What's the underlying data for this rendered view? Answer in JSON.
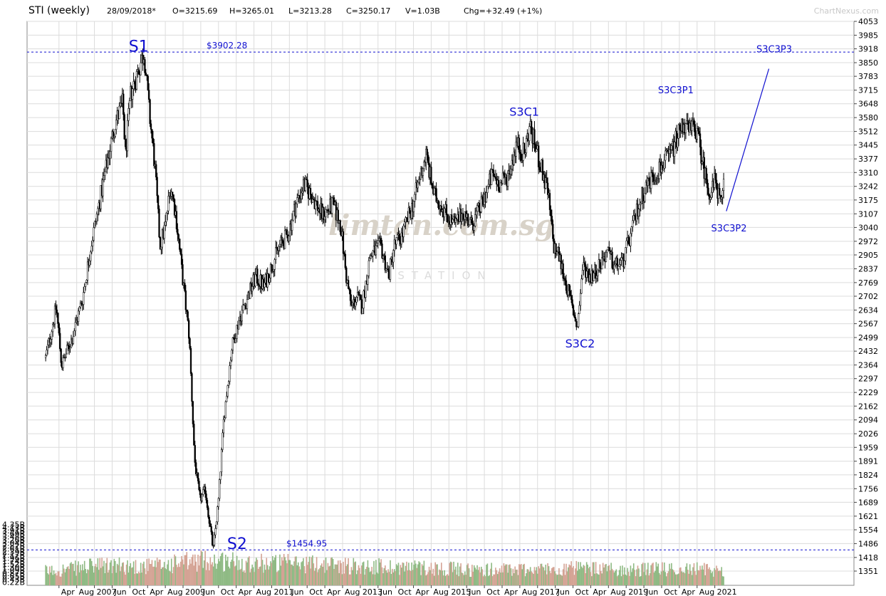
{
  "header": {
    "title": "STI (weekly)",
    "date": "28/09/2018*",
    "open": "O=3215.69",
    "high": "H=3265.01",
    "low": "L=3213.28",
    "close": "C=3250.17",
    "volume": "V=1.03B",
    "change": "Chg=+32.49 (+1%)",
    "brand": "ChartNexus.com"
  },
  "watermark": {
    "text": "limtan.com.sg",
    "sub": "STATION"
  },
  "colors": {
    "price": "#000000",
    "volume_up": "#8fba84",
    "volume_down": "#d4a394",
    "annotation": "#1010d0",
    "grid": "#dcdcdc"
  },
  "chart_data": {
    "type": "candlestick",
    "symbol": "STI",
    "interval": "weekly",
    "price_axis": {
      "ticks": [
        "4053",
        "3985",
        "3918",
        "3850",
        "3783",
        "3715",
        "3648",
        "3580",
        "3512",
        "3445",
        "3377",
        "3310",
        "3242",
        "3175",
        "3107",
        "3040",
        "2972",
        "2905",
        "2837",
        "2769",
        "2702",
        "2634",
        "2567",
        "2499",
        "2432",
        "2364",
        "2297",
        "2229",
        "2162",
        "2094",
        "2026",
        "1959",
        "1891",
        "1824",
        "1756",
        "1689",
        "1621",
        "1554",
        "1486",
        "1418",
        "1351"
      ],
      "range": [
        1320,
        4053
      ]
    },
    "volume_axis": {
      "ticks": [
        "4.35B",
        "4.13B",
        "3.91B",
        "3.69B",
        "3.48B",
        "3.26B",
        "3.04B",
        "2.82B",
        "2.61B",
        "2.39B",
        "2.17B",
        "1.96B",
        "1.74B",
        "1.52B",
        "1.30B",
        "1.09B",
        "0.87B",
        "0.65B",
        "0.43B",
        "0.22B"
      ]
    },
    "time_axis": {
      "labels": [
        "Apr",
        "Aug",
        "2007",
        "Jun",
        "Oct",
        "Apr",
        "Aug",
        "2009",
        "Jun",
        "Oct",
        "Apr",
        "Aug",
        "2011",
        "Jun",
        "Oct",
        "Apr",
        "Aug",
        "2013",
        "Jun",
        "Oct",
        "Apr",
        "Aug",
        "2015",
        "Jun",
        "Oct",
        "Apr",
        "Aug",
        "2017",
        "Jun",
        "Oct",
        "Apr",
        "Aug",
        "2019",
        "Jun",
        "Oct",
        "Apr",
        "Aug",
        "2021"
      ]
    },
    "horizontal_lines": [
      {
        "value": 3902.28,
        "label": "$3902.28"
      },
      {
        "value": 1454.95,
        "label": "$1454.95"
      }
    ],
    "price_path": [
      [
        2006.0,
        2400
      ],
      [
        2006.2,
        2650
      ],
      [
        2006.3,
        2360
      ],
      [
        2006.5,
        2500
      ],
      [
        2006.7,
        2700
      ],
      [
        2006.85,
        2950
      ],
      [
        2007.0,
        3150
      ],
      [
        2007.15,
        3350
      ],
      [
        2007.3,
        3550
      ],
      [
        2007.45,
        3650
      ],
      [
        2007.5,
        3400
      ],
      [
        2007.6,
        3700
      ],
      [
        2007.8,
        3860
      ],
      [
        2007.85,
        3902
      ],
      [
        2007.95,
        3600
      ],
      [
        2008.05,
        3350
      ],
      [
        2008.15,
        2950
      ],
      [
        2008.25,
        3050
      ],
      [
        2008.35,
        3250
      ],
      [
        2008.45,
        3100
      ],
      [
        2008.55,
        2850
      ],
      [
        2008.7,
        2500
      ],
      [
        2008.8,
        1900
      ],
      [
        2008.9,
        1700
      ],
      [
        2009.0,
        1750
      ],
      [
        2009.15,
        1455
      ],
      [
        2009.25,
        1700
      ],
      [
        2009.35,
        2100
      ],
      [
        2009.5,
        2450
      ],
      [
        2009.65,
        2600
      ],
      [
        2009.8,
        2700
      ],
      [
        2009.95,
        2800
      ],
      [
        2010.1,
        2750
      ],
      [
        2010.25,
        2850
      ],
      [
        2010.4,
        2950
      ],
      [
        2010.55,
        3000
      ],
      [
        2010.7,
        3150
      ],
      [
        2010.85,
        3250
      ],
      [
        2011.0,
        3200
      ],
      [
        2011.2,
        3100
      ],
      [
        2011.4,
        3150
      ],
      [
        2011.55,
        3050
      ],
      [
        2011.65,
        2800
      ],
      [
        2011.75,
        2650
      ],
      [
        2011.85,
        2700
      ],
      [
        2011.95,
        2650
      ],
      [
        2012.1,
        2900
      ],
      [
        2012.3,
        2950
      ],
      [
        2012.45,
        2800
      ],
      [
        2012.55,
        2950
      ],
      [
        2012.7,
        3000
      ],
      [
        2012.9,
        3150
      ],
      [
        2013.05,
        3300
      ],
      [
        2013.15,
        3400
      ],
      [
        2013.3,
        3200
      ],
      [
        2013.45,
        3150
      ],
      [
        2013.55,
        3100
      ],
      [
        2013.7,
        3050
      ],
      [
        2013.85,
        3120
      ],
      [
        2014.0,
        3050
      ],
      [
        2014.2,
        3150
      ],
      [
        2014.4,
        3300
      ],
      [
        2014.55,
        3250
      ],
      [
        2014.7,
        3300
      ],
      [
        2014.85,
        3450
      ],
      [
        2015.0,
        3400
      ],
      [
        2015.1,
        3540
      ],
      [
        2015.25,
        3400
      ],
      [
        2015.35,
        3300
      ],
      [
        2015.45,
        3200
      ],
      [
        2015.55,
        2950
      ],
      [
        2015.65,
        2900
      ],
      [
        2015.8,
        2750
      ],
      [
        2015.95,
        2600
      ],
      [
        2016.0,
        2550
      ],
      [
        2016.1,
        2850
      ],
      [
        2016.25,
        2800
      ],
      [
        2016.4,
        2850
      ],
      [
        2016.55,
        2920
      ],
      [
        2016.7,
        2850
      ],
      [
        2016.85,
        2870
      ],
      [
        2017.0,
        3000
      ],
      [
        2017.15,
        3150
      ],
      [
        2017.3,
        3250
      ],
      [
        2017.45,
        3300
      ],
      [
        2017.6,
        3350
      ],
      [
        2017.75,
        3400
      ],
      [
        2017.9,
        3500
      ],
      [
        2018.0,
        3560
      ],
      [
        2018.1,
        3500
      ],
      [
        2018.2,
        3550
      ],
      [
        2018.3,
        3440
      ],
      [
        2018.4,
        3300
      ],
      [
        2018.5,
        3200
      ],
      [
        2018.6,
        3280
      ],
      [
        2018.7,
        3130
      ],
      [
        2018.75,
        3250
      ]
    ],
    "volume_profile": [
      [
        2006.0,
        1.0
      ],
      [
        2007.0,
        1.4
      ],
      [
        2008.0,
        1.35
      ],
      [
        2009.0,
        1.8
      ],
      [
        2010.0,
        1.6
      ],
      [
        2011.0,
        1.55
      ],
      [
        2012.0,
        1.35
      ],
      [
        2013.0,
        1.3
      ],
      [
        2014.0,
        1.1
      ],
      [
        2015.0,
        1.15
      ],
      [
        2016.0,
        1.2
      ],
      [
        2017.0,
        1.1
      ],
      [
        2018.0,
        1.2
      ],
      [
        2018.75,
        1.05
      ]
    ],
    "annotations": [
      {
        "label": "S1",
        "x": 2007.75,
        "y": 3905
      },
      {
        "label": "S2",
        "x": 2009.6,
        "y": 1460
      },
      {
        "label": "S3C1",
        "x": 2015.0,
        "y": 3590
      },
      {
        "label": "S3C2",
        "x": 2016.05,
        "y": 2450
      },
      {
        "label": "S3C3P1",
        "x": 2017.85,
        "y": 3700
      },
      {
        "label": "S3C3P2",
        "x": 2018.85,
        "y": 3020
      },
      {
        "label": "S3C3P3",
        "x": 2019.7,
        "y": 3900
      }
    ],
    "projection_line": [
      [
        2018.8,
        3120
      ],
      [
        2019.6,
        3820
      ]
    ]
  }
}
